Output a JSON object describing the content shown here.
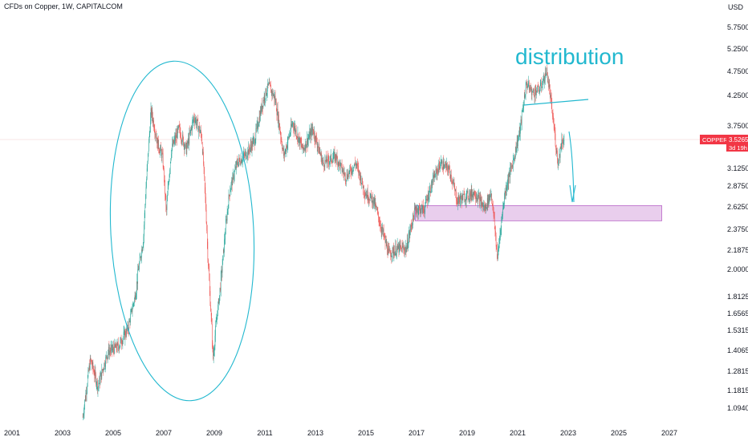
{
  "header": {
    "title": "CFDs on Copper, 1W, CAPITALCOM"
  },
  "currency": "USD",
  "price_badge": {
    "symbol": "COPPER",
    "price": "3.5265",
    "countdown": "3d 19h"
  },
  "annotations": {
    "text": "distribution"
  },
  "colors": {
    "up": "#26a69a",
    "down": "#ef5350",
    "drawing": "#22b8cf",
    "zone_fill": "#e1bee7",
    "zone_border": "#ba68c8",
    "badge": "#f23645"
  },
  "chart_data": {
    "type": "candlestick",
    "title": "CFDs on Copper, 1W, CAPITALCOM",
    "y_unit": "USD",
    "y_scale": "log",
    "x_tick_labels": [
      "2001",
      "2003",
      "2005",
      "2007",
      "2009",
      "2011",
      "2013",
      "2015",
      "2017",
      "2019",
      "2021",
      "2023",
      "2025",
      "2027"
    ],
    "y_tick_labels": [
      "5.7500",
      "5.2500",
      "4.7500",
      "4.2500",
      "3.7500",
      "3.1250",
      "2.8750",
      "2.6250",
      "2.3750",
      "2.1875",
      "2.0000",
      "1.8125",
      "1.6565",
      "1.5315",
      "1.4065",
      "1.2815",
      "1.1815",
      "1.0940"
    ],
    "last_price": 3.5265,
    "price_path": [
      [
        2003.8,
        1.05
      ],
      [
        2004.1,
        1.35
      ],
      [
        2004.4,
        1.2
      ],
      [
        2004.8,
        1.4
      ],
      [
        2005.2,
        1.43
      ],
      [
        2005.6,
        1.55
      ],
      [
        2005.9,
        1.85
      ],
      [
        2006.2,
        2.3
      ],
      [
        2006.5,
        4.0
      ],
      [
        2006.75,
        3.5
      ],
      [
        2006.95,
        3.3
      ],
      [
        2007.1,
        2.55
      ],
      [
        2007.3,
        3.4
      ],
      [
        2007.6,
        3.7
      ],
      [
        2007.9,
        3.4
      ],
      [
        2008.2,
        3.9
      ],
      [
        2008.5,
        3.6
      ],
      [
        2008.75,
        2.1
      ],
      [
        2008.95,
        1.35
      ],
      [
        2009.3,
        2.0
      ],
      [
        2009.6,
        2.8
      ],
      [
        2009.9,
        3.2
      ],
      [
        2010.3,
        3.35
      ],
      [
        2010.6,
        3.55
      ],
      [
        2010.95,
        4.2
      ],
      [
        2011.15,
        4.45
      ],
      [
        2011.4,
        4.2
      ],
      [
        2011.75,
        3.3
      ],
      [
        2012.1,
        3.8
      ],
      [
        2012.5,
        3.4
      ],
      [
        2012.9,
        3.7
      ],
      [
        2013.3,
        3.2
      ],
      [
        2013.8,
        3.3
      ],
      [
        2014.2,
        3.0
      ],
      [
        2014.6,
        3.2
      ],
      [
        2014.95,
        2.8
      ],
      [
        2015.3,
        2.7
      ],
      [
        2015.6,
        2.4
      ],
      [
        2015.9,
        2.15
      ],
      [
        2016.3,
        2.2
      ],
      [
        2016.6,
        2.2
      ],
      [
        2016.95,
        2.6
      ],
      [
        2017.3,
        2.6
      ],
      [
        2017.7,
        3.0
      ],
      [
        2017.95,
        3.2
      ],
      [
        2018.3,
        3.1
      ],
      [
        2018.6,
        2.7
      ],
      [
        2018.95,
        2.75
      ],
      [
        2019.3,
        2.8
      ],
      [
        2019.7,
        2.6
      ],
      [
        2019.95,
        2.8
      ],
      [
        2020.2,
        2.1
      ],
      [
        2020.5,
        2.8
      ],
      [
        2020.8,
        3.2
      ],
      [
        2021.1,
        3.7
      ],
      [
        2021.35,
        4.5
      ],
      [
        2021.6,
        4.3
      ],
      [
        2021.9,
        4.4
      ],
      [
        2022.15,
        4.75
      ],
      [
        2022.3,
        4.2
      ],
      [
        2022.5,
        3.5
      ],
      [
        2022.6,
        3.2
      ],
      [
        2022.75,
        3.55
      ],
      [
        2022.85,
        3.5265
      ]
    ],
    "demand_zone": {
      "from": 2016.95,
      "to": 2026.7,
      "low": 2.47,
      "high": 2.64
    }
  }
}
